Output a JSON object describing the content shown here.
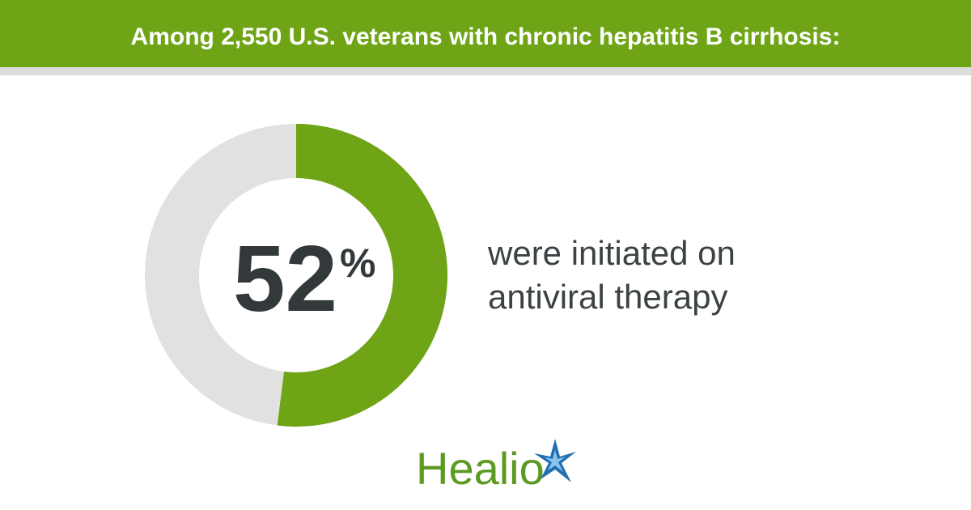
{
  "chart_data": {
    "type": "donut",
    "title": "Among 2,550 U.S. veterans with chronic hepatitis B cirrhosis:",
    "values": [
      52,
      48
    ],
    "unit": "%",
    "colors": [
      "#6ea415",
      "#e1e1e1"
    ],
    "caption": [
      "were initiated on",
      "antiviral therapy"
    ],
    "logo": "Healio"
  }
}
